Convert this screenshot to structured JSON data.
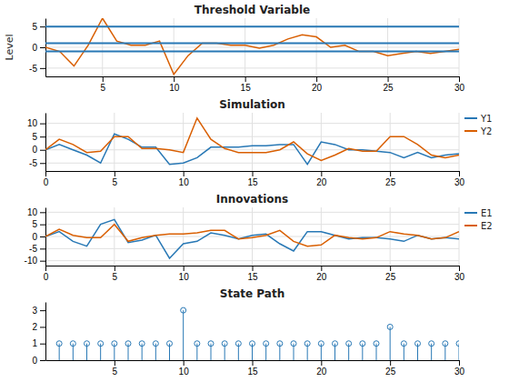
{
  "chart_data": [
    {
      "type": "line",
      "title": "Threshold Variable",
      "ylabel": "Level",
      "x": [
        1,
        2,
        3,
        4,
        5,
        6,
        7,
        8,
        9,
        10,
        11,
        12,
        13,
        14,
        15,
        16,
        17,
        18,
        19,
        20,
        21,
        22,
        23,
        24,
        25,
        26,
        27,
        28,
        29,
        30
      ],
      "series": [
        {
          "color": "#d95f02",
          "values": [
            0,
            -1,
            -4.5,
            0.5,
            7,
            1.5,
            0.5,
            0.5,
            1.5,
            -6.5,
            -2,
            1,
            1,
            0.5,
            0.5,
            -0.2,
            0.5,
            2,
            3,
            2.5,
            0,
            0.5,
            -1,
            -1,
            -2,
            -1.5,
            -1,
            -1.5,
            -1,
            -0.5
          ]
        }
      ],
      "hlines": [
        5,
        1,
        -1
      ],
      "hline_color": "#2878b5",
      "xlim": [
        1,
        30
      ],
      "ylim": [
        -7,
        7
      ],
      "xticks": [
        5,
        10,
        15,
        20,
        25,
        30
      ],
      "yticks": [
        -5,
        0,
        5
      ],
      "grid": true
    },
    {
      "type": "line",
      "title": "Simulation",
      "x": [
        0,
        1,
        2,
        3,
        4,
        5,
        6,
        7,
        8,
        9,
        10,
        11,
        12,
        13,
        14,
        15,
        16,
        17,
        18,
        19,
        20,
        21,
        22,
        23,
        24,
        25,
        26,
        27,
        28,
        29,
        30
      ],
      "series": [
        {
          "name": "Y1",
          "color": "#2878b5",
          "values": [
            0,
            2,
            0,
            -2,
            -5,
            6,
            4,
            1,
            1,
            -5.5,
            -5,
            -3,
            1,
            1,
            1,
            1.5,
            1.5,
            2,
            2,
            -5.5,
            3,
            2,
            0,
            0,
            -0.5,
            -1,
            -3,
            -1,
            -3,
            -2,
            -1.5
          ]
        },
        {
          "name": "Y2",
          "color": "#d95f02",
          "values": [
            0,
            4,
            2,
            -1,
            -0.5,
            5,
            5,
            0.5,
            0.5,
            0,
            -1,
            12,
            4,
            0.5,
            -1,
            -1,
            -1,
            0,
            3,
            -1.5,
            -4,
            -2,
            0.5,
            -0.5,
            -0.5,
            5,
            5,
            2,
            -2,
            -3,
            -2
          ]
        }
      ],
      "xlim": [
        0,
        30
      ],
      "ylim": [
        -8,
        14
      ],
      "xticks": [
        0,
        5,
        10,
        15,
        20,
        25,
        30
      ],
      "yticks": [
        -5,
        0,
        5,
        10
      ],
      "grid": true,
      "legend": "upper right"
    },
    {
      "type": "line",
      "title": "Innovations",
      "x": [
        0,
        1,
        2,
        3,
        4,
        5,
        6,
        7,
        8,
        9,
        10,
        11,
        12,
        13,
        14,
        15,
        16,
        17,
        18,
        19,
        20,
        21,
        22,
        23,
        24,
        25,
        26,
        27,
        28,
        29,
        30
      ],
      "series": [
        {
          "name": "E1",
          "color": "#2878b5",
          "values": [
            0,
            2,
            -2,
            -4,
            5,
            7,
            -2.5,
            -1.5,
            0.5,
            -9,
            -3,
            -2,
            1.5,
            0.5,
            -1,
            0.5,
            1,
            -3,
            -6,
            2,
            2,
            0.5,
            -1,
            -0.5,
            -0.5,
            -1,
            -2,
            0.5,
            -1,
            -0.5,
            -1
          ]
        },
        {
          "name": "E2",
          "color": "#d95f02",
          "values": [
            0,
            3,
            0.5,
            -0.5,
            -0.5,
            5,
            -2,
            -0.5,
            0.5,
            1,
            1,
            1.5,
            2.5,
            2.5,
            -1,
            -0.5,
            0.5,
            2.5,
            -2,
            -4,
            -3.5,
            0.5,
            -0.5,
            -1,
            -0.5,
            2,
            1,
            0.5,
            -1,
            -0.5,
            2
          ]
        }
      ],
      "xlim": [
        0,
        30
      ],
      "ylim": [
        -12,
        12
      ],
      "xticks": [
        0,
        5,
        10,
        15,
        20,
        25,
        30
      ],
      "yticks": [
        -10,
        -5,
        0,
        5,
        10
      ],
      "grid": true,
      "legend": "upper right"
    },
    {
      "type": "stem",
      "title": "State Path",
      "x": [
        1,
        2,
        3,
        4,
        5,
        6,
        7,
        8,
        9,
        10,
        11,
        12,
        13,
        14,
        15,
        16,
        17,
        18,
        19,
        20,
        21,
        22,
        23,
        24,
        25,
        26,
        27,
        28,
        29,
        30
      ],
      "values": [
        1,
        1,
        1,
        1,
        1,
        1,
        1,
        1,
        1,
        3,
        1,
        1,
        1,
        1,
        1,
        1,
        1,
        1,
        1,
        1,
        1,
        1,
        1,
        1,
        2,
        1,
        1,
        1,
        1,
        1
      ],
      "color": "#2878b5",
      "marker": "open-circle",
      "xlim": [
        0,
        30
      ],
      "ylim": [
        0,
        3.5
      ],
      "xticks": [
        5,
        10,
        15,
        20,
        25,
        30
      ],
      "yticks": [
        0,
        1,
        2,
        3
      ],
      "grid": false
    }
  ]
}
